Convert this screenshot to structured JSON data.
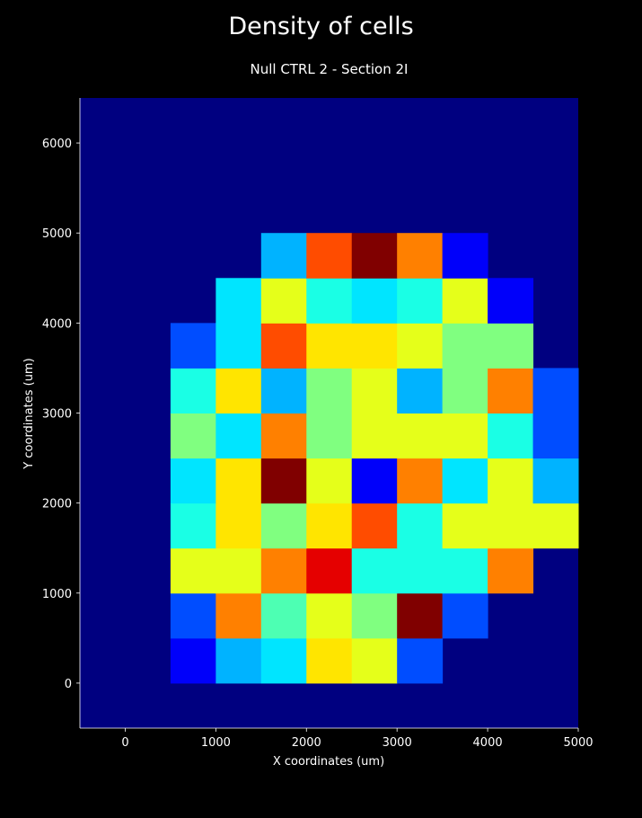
{
  "suptitle": "Density of cells",
  "chart_data": {
    "type": "heatmap",
    "title": "Null CTRL 2 - Section 2I",
    "xlabel": "X coordinates (um)",
    "ylabel": "Y coordinates (um)",
    "xlim": [
      -500,
      5000
    ],
    "ylim": [
      -500,
      6500
    ],
    "xticks": [
      0,
      1000,
      2000,
      3000,
      4000,
      5000
    ],
    "yticks": [
      0,
      1000,
      2000,
      3000,
      4000,
      5000,
      6000
    ],
    "bin_size": 500,
    "colormap": "jet",
    "background_color": "#000080",
    "x_bins": [
      -500,
      0,
      500,
      1000,
      1500,
      2000,
      2500,
      3000,
      3500,
      4000,
      4500
    ],
    "y_bins": [
      -500,
      0,
      500,
      1000,
      1500,
      2000,
      2500,
      3000,
      3500,
      4000,
      4500,
      5000,
      5500,
      6000
    ],
    "grid": [
      [
        0,
        0,
        0,
        0,
        0,
        0,
        0,
        0,
        0,
        0,
        0
      ],
      [
        0,
        0,
        0.12,
        0.3,
        0.35,
        0.65,
        0.6,
        0.2,
        0,
        0,
        0
      ],
      [
        0,
        0,
        0.2,
        0.75,
        0.45,
        0.6,
        0.5,
        1.0,
        0.2,
        0,
        0
      ],
      [
        0,
        0,
        0.6,
        0.6,
        0.75,
        0.9,
        0.4,
        0.4,
        0.4,
        0.75,
        0
      ],
      [
        0,
        0,
        0.4,
        0.65,
        0.5,
        0.65,
        0.8,
        0.4,
        0.6,
        0.6,
        0.6
      ],
      [
        0,
        0,
        0.35,
        0.65,
        1.0,
        0.6,
        0.12,
        0.75,
        0.35,
        0.6,
        0.3
      ],
      [
        0,
        0,
        0.5,
        0.35,
        0.75,
        0.5,
        0.6,
        0.6,
        0.6,
        0.4,
        0.2
      ],
      [
        0,
        0,
        0.4,
        0.65,
        0.3,
        0.5,
        0.6,
        0.3,
        0.5,
        0.75,
        0.2
      ],
      [
        0,
        0,
        0.2,
        0.35,
        0.8,
        0.65,
        0.65,
        0.6,
        0.5,
        0.5,
        0
      ],
      [
        0,
        0,
        0,
        0.35,
        0.6,
        0.4,
        0.35,
        0.4,
        0.6,
        0.12,
        0
      ],
      [
        0,
        0,
        0,
        0,
        0.3,
        0.8,
        1.0,
        0.75,
        0.12,
        0,
        0
      ],
      [
        0,
        0,
        0,
        0,
        0,
        0,
        0,
        0,
        0,
        0,
        0
      ],
      [
        0,
        0,
        0,
        0,
        0,
        0,
        0,
        0,
        0,
        0,
        0
      ],
      [
        0,
        0,
        0,
        0,
        0,
        0,
        0,
        0,
        0,
        0,
        0
      ]
    ]
  }
}
